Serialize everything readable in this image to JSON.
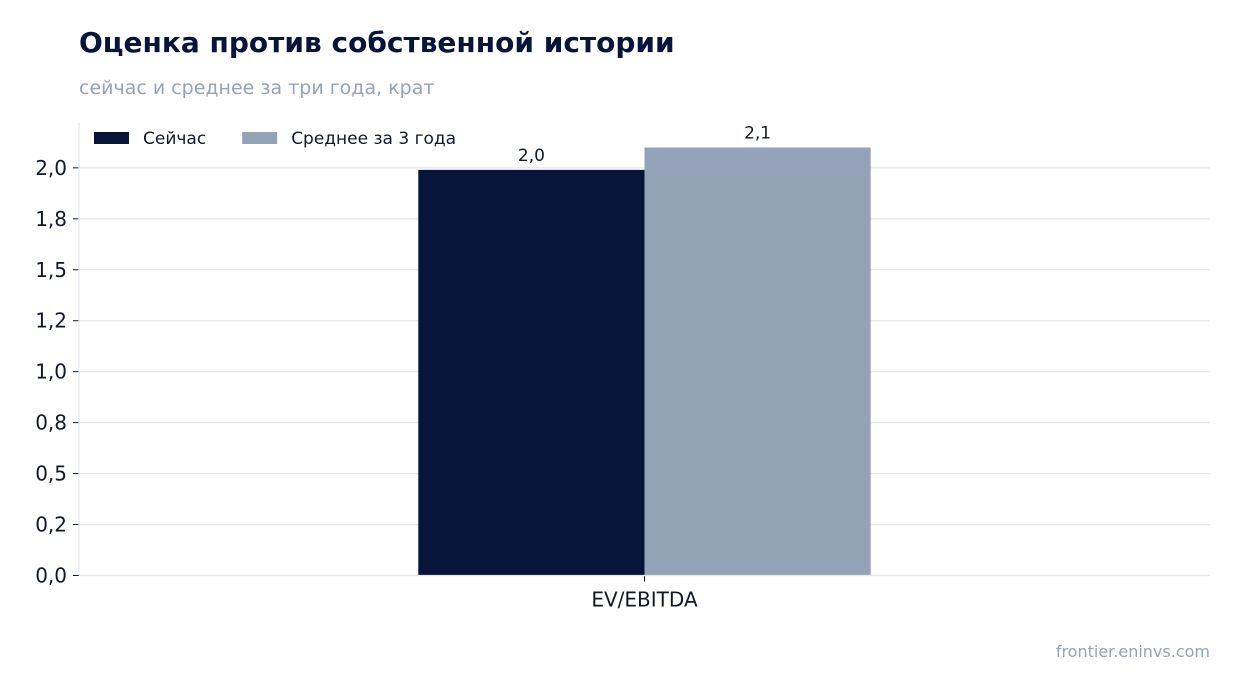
{
  "header": {
    "title": "Оценка против собственной истории",
    "subtitle": "сейчас и среднее за три года, крат"
  },
  "footer": {
    "source": "frontier.eninvs.com"
  },
  "colors": {
    "current": "#061539",
    "average": "#94a3b8",
    "grid": "#e2e8f0",
    "axis": "#e2e8f0",
    "text": "#111827"
  },
  "chart_data": {
    "type": "bar",
    "categories": [
      "EV/EBITDA"
    ],
    "series": [
      {
        "name": "Сейчас",
        "values": [
          1.99
        ],
        "label": "2,0"
      },
      {
        "name": "Среднее за 3 года",
        "values": [
          2.1
        ],
        "label": "2,1"
      }
    ],
    "yticks": [
      {
        "value": 0.0,
        "label": "0,0"
      },
      {
        "value": 0.25,
        "label": "0,2"
      },
      {
        "value": 0.5,
        "label": "0,5"
      },
      {
        "value": 0.75,
        "label": "0,8"
      },
      {
        "value": 1.0,
        "label": "1,0"
      },
      {
        "value": 1.25,
        "label": "1,2"
      },
      {
        "value": 1.5,
        "label": "1,5"
      },
      {
        "value": 1.75,
        "label": "1,8"
      },
      {
        "value": 2.0,
        "label": "2,0"
      }
    ],
    "ylim": [
      0,
      2.22
    ],
    "grid": true,
    "legend": "top-left"
  }
}
